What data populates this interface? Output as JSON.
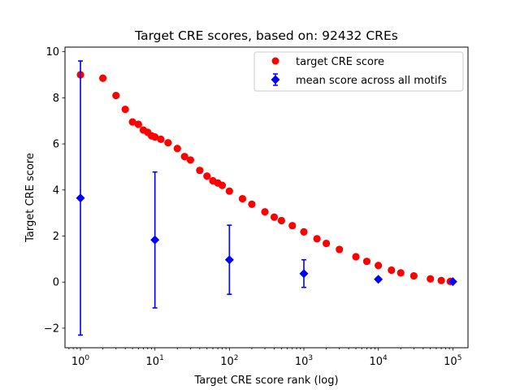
{
  "chart_data": {
    "type": "scatter",
    "title": "Target CRE scores, based on: 92432 CREs",
    "xlabel": "Target CRE score rank (log)",
    "ylabel": "Target CRE score",
    "x_scale": "log",
    "xlim": [
      0.62,
      160000
    ],
    "ylim": [
      -2.85,
      10.2
    ],
    "x_ticks": [
      {
        "value": 1,
        "base": "10",
        "exp": "0"
      },
      {
        "value": 10,
        "base": "10",
        "exp": "1"
      },
      {
        "value": 100,
        "base": "10",
        "exp": "2"
      },
      {
        "value": 1000,
        "base": "10",
        "exp": "3"
      },
      {
        "value": 10000,
        "base": "10",
        "exp": "4"
      },
      {
        "value": 100000,
        "base": "10",
        "exp": "5"
      }
    ],
    "y_ticks": [
      "−2",
      "0",
      "2",
      "4",
      "6",
      "8",
      "10"
    ],
    "y_tick_values": [
      -2,
      0,
      2,
      4,
      6,
      8,
      10
    ],
    "legend_position": "upper-right",
    "grid": false,
    "series": [
      {
        "name": "target CRE score",
        "marker": "circle",
        "color": "#ff0000",
        "x": [
          1,
          2,
          3,
          4,
          5,
          6,
          7,
          8,
          9,
          10,
          12,
          15,
          20,
          25,
          30,
          40,
          50,
          60,
          70,
          80,
          100,
          150,
          200,
          300,
          400,
          500,
          700,
          1000,
          1500,
          2000,
          3000,
          5000,
          7000,
          10000,
          15000,
          20000,
          30000,
          50000,
          70000,
          92432
        ],
        "y": [
          9.0,
          8.85,
          8.1,
          7.5,
          6.95,
          6.85,
          6.6,
          6.5,
          6.35,
          6.3,
          6.2,
          6.05,
          5.8,
          5.45,
          5.3,
          4.85,
          4.6,
          4.4,
          4.3,
          4.2,
          3.95,
          3.62,
          3.38,
          3.05,
          2.82,
          2.67,
          2.45,
          2.18,
          1.88,
          1.68,
          1.42,
          1.1,
          0.9,
          0.72,
          0.52,
          0.4,
          0.27,
          0.14,
          0.07,
          0.03
        ]
      },
      {
        "name": "mean score across all motifs",
        "marker": "diamond",
        "color": "#0000ff",
        "x": [
          1,
          10,
          100,
          1000,
          10000,
          100000
        ],
        "y": [
          3.65,
          1.83,
          0.97,
          0.37,
          0.12,
          0.02
        ],
        "yerr": [
          5.95,
          2.95,
          1.5,
          0.6,
          0.07,
          0.03
        ]
      }
    ]
  }
}
